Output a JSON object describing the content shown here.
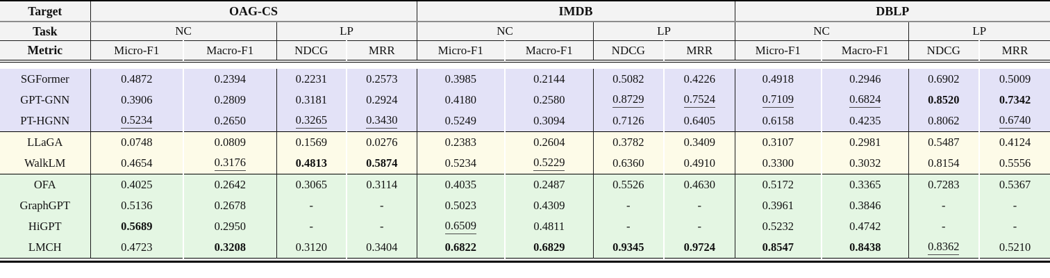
{
  "colors": {
    "header_bg": "#f3f3f3",
    "group1_bg": "#e3e2f7",
    "group2_bg": "#fdfbe8",
    "group3_bg": "#e4f6e3",
    "rule_gray": "#8c8c8c",
    "rule_black": "#000000"
  },
  "header": {
    "row_labels": {
      "target": "Target",
      "task": "Task",
      "metric": "Metric"
    },
    "targets": [
      {
        "name": "OAG-CS",
        "tasks": [
          {
            "name": "NC",
            "metrics": [
              "Micro-F1",
              "Macro-F1"
            ]
          },
          {
            "name": "LP",
            "metrics": [
              "NDCG",
              "MRR"
            ]
          }
        ]
      },
      {
        "name": "IMDB",
        "tasks": [
          {
            "name": "NC",
            "metrics": [
              "Micro-F1",
              "Macro-F1"
            ]
          },
          {
            "name": "LP",
            "metrics": [
              "NDCG",
              "MRR"
            ]
          }
        ]
      },
      {
        "name": "DBLP",
        "tasks": [
          {
            "name": "NC",
            "metrics": [
              "Micro-F1",
              "Macro-F1"
            ]
          },
          {
            "name": "LP",
            "metrics": [
              "NDCG",
              "MRR"
            ]
          }
        ]
      }
    ]
  },
  "body": {
    "groups": [
      {
        "rows": [
          {
            "model": "SGFormer",
            "values": [
              "0.4872",
              "0.2394",
              "0.2231",
              "0.2573",
              "0.3985",
              "0.2144",
              "0.5082",
              "0.4226",
              "0.4918",
              "0.2946",
              "0.6902",
              "0.5009"
            ],
            "flags": [
              "",
              "",
              "",
              "",
              "",
              "",
              "",
              "",
              "",
              "",
              "",
              ""
            ]
          },
          {
            "model": "GPT-GNN",
            "values": [
              "0.3906",
              "0.2809",
              "0.3181",
              "0.2924",
              "0.4180",
              "0.2580",
              "0.8729",
              "0.7524",
              "0.7109",
              "0.6824",
              "0.8520",
              "0.7342"
            ],
            "flags": [
              "",
              "",
              "",
              "",
              "",
              "",
              "u",
              "u",
              "u",
              "u",
              "b",
              "b"
            ]
          },
          {
            "model": "PT-HGNN",
            "values": [
              "0.5234",
              "0.2650",
              "0.3265",
              "0.3430",
              "0.5249",
              "0.3094",
              "0.7126",
              "0.6405",
              "0.6158",
              "0.4235",
              "0.8062",
              "0.6740"
            ],
            "flags": [
              "u",
              "",
              "u",
              "u",
              "",
              "",
              "",
              "",
              "",
              "",
              "",
              "u"
            ]
          }
        ]
      },
      {
        "rows": [
          {
            "model": "LLaGA",
            "values": [
              "0.0748",
              "0.0809",
              "0.1569",
              "0.0276",
              "0.2383",
              "0.2604",
              "0.3782",
              "0.3409",
              "0.3107",
              "0.2981",
              "0.5487",
              "0.4124"
            ],
            "flags": [
              "",
              "",
              "",
              "",
              "",
              "",
              "",
              "",
              "",
              "",
              "",
              ""
            ]
          },
          {
            "model": "WalkLM",
            "values": [
              "0.4654",
              "0.3176",
              "0.4813",
              "0.5874",
              "0.5234",
              "0.5229",
              "0.6360",
              "0.4910",
              "0.3300",
              "0.3032",
              "0.8154",
              "0.5556"
            ],
            "flags": [
              "",
              "u",
              "b",
              "b",
              "",
              "u",
              "",
              "",
              "",
              "",
              "",
              ""
            ]
          }
        ]
      },
      {
        "rows": [
          {
            "model": "OFA",
            "values": [
              "0.4025",
              "0.2642",
              "0.3065",
              "0.3114",
              "0.4035",
              "0.2487",
              "0.5526",
              "0.4630",
              "0.5172",
              "0.3365",
              "0.7283",
              "0.5367"
            ],
            "flags": [
              "",
              "",
              "",
              "",
              "",
              "",
              "",
              "",
              "",
              "",
              "",
              ""
            ]
          },
          {
            "model": "GraphGPT",
            "values": [
              "0.5136",
              "0.2678",
              "-",
              "-",
              "0.5023",
              "0.4309",
              "-",
              "-",
              "0.3961",
              "0.3846",
              "-",
              "-"
            ],
            "flags": [
              "",
              "",
              "",
              "",
              "",
              "",
              "",
              "",
              "",
              "",
              "",
              ""
            ]
          },
          {
            "model": "HiGPT",
            "values": [
              "0.5689",
              "0.2950",
              "-",
              "-",
              "0.6509",
              "0.4811",
              "-",
              "-",
              "0.5232",
              "0.4742",
              "-",
              "-"
            ],
            "flags": [
              "b",
              "",
              "",
              "",
              "u",
              "",
              "",
              "",
              "",
              "",
              "",
              ""
            ]
          },
          {
            "model": "LMCH",
            "values": [
              "0.4723",
              "0.3208",
              "0.3120",
              "0.3404",
              "0.6822",
              "0.6829",
              "0.9345",
              "0.9724",
              "0.8547",
              "0.8438",
              "0.8362",
              "0.5210"
            ],
            "flags": [
              "",
              "b",
              "",
              "",
              "b",
              "b",
              "b",
              "b",
              "b",
              "b",
              "u",
              ""
            ]
          }
        ]
      }
    ]
  }
}
